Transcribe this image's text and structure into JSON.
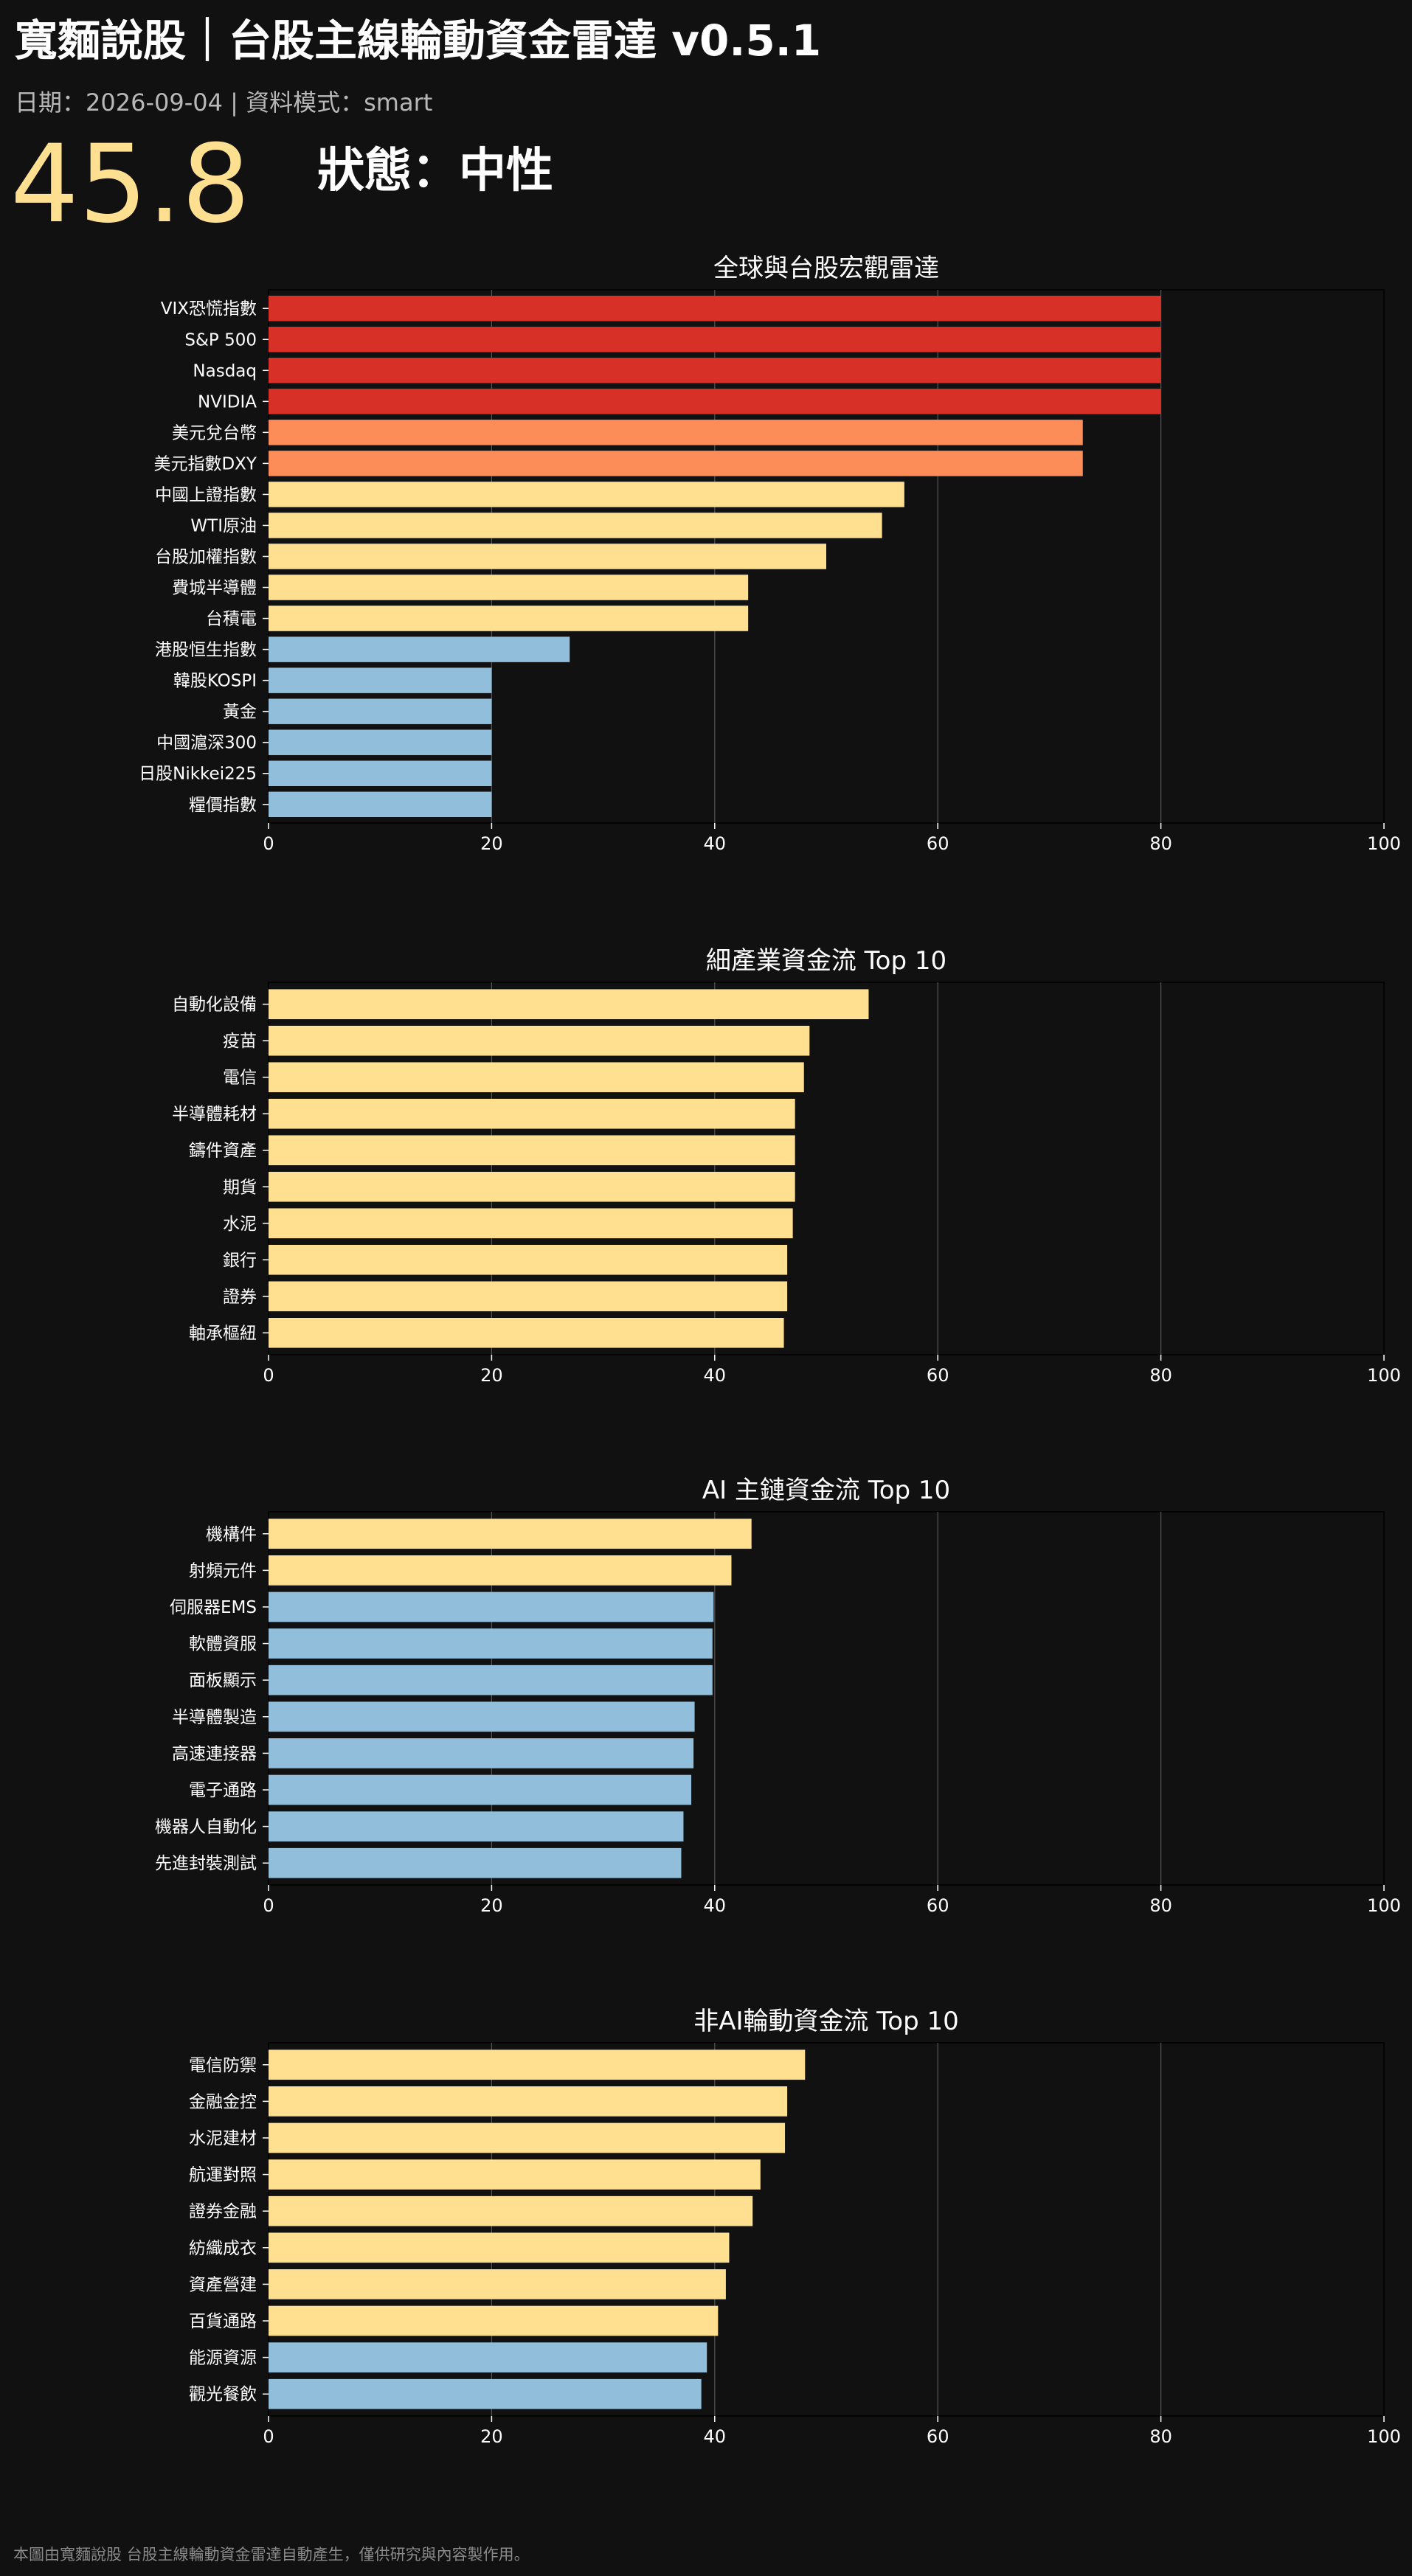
{
  "header": {
    "title": "寬麵說股｜台股主線輪動資金雷達 v0.5.1",
    "date_label": "日期：",
    "date": "2026-09-04",
    "separator": " | ",
    "mode_label": "資料模式：",
    "mode": "smart",
    "score": "45.8",
    "state_label": "狀態",
    "state_colon": "：",
    "state": "中性"
  },
  "colors": {
    "background": "#111111",
    "hot": "#d73027",
    "warm": "#fc8d59",
    "neutral": "#fee090",
    "cool": "#91bfdb",
    "grid": "#555555",
    "axis": "#ffffff"
  },
  "chart_data": [
    {
      "type": "bar",
      "orientation": "horizontal",
      "title": "全球與台股宏觀雷達",
      "xlim": [
        0,
        100
      ],
      "xticks": [
        "0",
        "20",
        "40",
        "60",
        "80",
        "100"
      ],
      "grid": "x",
      "categories": [
        "VIX恐慌指數",
        "S&P 500",
        "Nasdaq",
        "NVIDIA",
        "美元兌台幣",
        "美元指數DXY",
        "中國上證指數",
        "WTI原油",
        "台股加權指數",
        "費城半導體",
        "台積電",
        "港股恒生指數",
        "韓股KOSPI",
        "黃金",
        "中國滬深300",
        "日股Nikkei225",
        "糧價指數"
      ],
      "values": [
        80,
        80,
        80,
        80,
        73,
        73,
        57,
        55,
        50,
        43,
        43,
        27,
        20,
        20,
        20,
        20,
        20
      ],
      "colors": [
        "#d73027",
        "#d73027",
        "#d73027",
        "#d73027",
        "#fc8d59",
        "#fc8d59",
        "#fee090",
        "#fee090",
        "#fee090",
        "#fee090",
        "#fee090",
        "#91bfdb",
        "#91bfdb",
        "#91bfdb",
        "#91bfdb",
        "#91bfdb",
        "#91bfdb"
      ]
    },
    {
      "type": "bar",
      "orientation": "horizontal",
      "title": "細產業資金流 Top 10",
      "xlim": [
        0,
        100
      ],
      "xticks": [
        "0",
        "20",
        "40",
        "60",
        "80",
        "100"
      ],
      "grid": "x",
      "categories": [
        "自動化設備",
        "疫苗",
        "電信",
        "半導體耗材",
        "鑄件資產",
        "期貨",
        "水泥",
        "銀行",
        "證券",
        "軸承樞紐"
      ],
      "values": [
        53.8,
        48.5,
        48.0,
        47.2,
        47.2,
        47.2,
        47.0,
        46.5,
        46.5,
        46.2
      ],
      "colors": [
        "#fee090",
        "#fee090",
        "#fee090",
        "#fee090",
        "#fee090",
        "#fee090",
        "#fee090",
        "#fee090",
        "#fee090",
        "#fee090"
      ]
    },
    {
      "type": "bar",
      "orientation": "horizontal",
      "title": "AI 主鏈資金流 Top 10",
      "xlim": [
        0,
        100
      ],
      "xticks": [
        "0",
        "20",
        "40",
        "60",
        "80",
        "100"
      ],
      "grid": "x",
      "categories": [
        "機構件",
        "射頻元件",
        "伺服器EMS",
        "軟體資服",
        "面板顯示",
        "半導體製造",
        "高速連接器",
        "電子通路",
        "機器人自動化",
        "先進封裝測試"
      ],
      "values": [
        43.3,
        41.5,
        39.9,
        39.8,
        39.8,
        38.2,
        38.1,
        37.9,
        37.2,
        37.0
      ],
      "colors": [
        "#fee090",
        "#fee090",
        "#91bfdb",
        "#91bfdb",
        "#91bfdb",
        "#91bfdb",
        "#91bfdb",
        "#91bfdb",
        "#91bfdb",
        "#91bfdb"
      ]
    },
    {
      "type": "bar",
      "orientation": "horizontal",
      "title": "非AI輪動資金流 Top 10",
      "xlim": [
        0,
        100
      ],
      "xticks": [
        "0",
        "20",
        "40",
        "60",
        "80",
        "100"
      ],
      "grid": "x",
      "categories": [
        "電信防禦",
        "金融金控",
        "水泥建材",
        "航運對照",
        "證券金融",
        "紡織成衣",
        "資產營建",
        "百貨通路",
        "能源資源",
        "觀光餐飲"
      ],
      "values": [
        48.1,
        46.5,
        46.3,
        44.1,
        43.4,
        41.3,
        41.0,
        40.3,
        39.3,
        38.8
      ],
      "colors": [
        "#fee090",
        "#fee090",
        "#fee090",
        "#fee090",
        "#fee090",
        "#fee090",
        "#fee090",
        "#fee090",
        "#91bfdb",
        "#91bfdb"
      ]
    }
  ],
  "footer": {
    "note": "本圖由寬麵說股 台股主線輪動資金雷達自動產生，僅供研究與內容製作用。"
  }
}
